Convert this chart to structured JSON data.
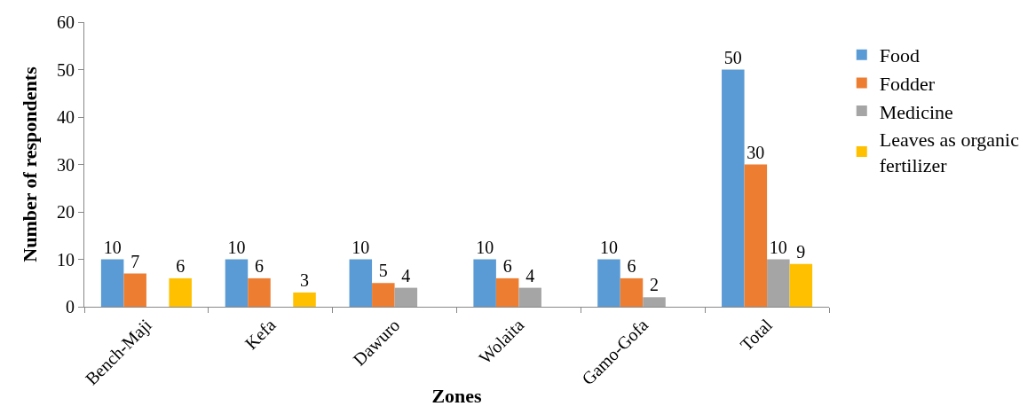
{
  "chart_data": {
    "type": "bar",
    "xlabel": "Zones",
    "ylabel": "Number of respondents",
    "categories": [
      "Bench-Maji",
      "Kefa",
      "Dawuro",
      "Wolaita",
      "Gamo-Gofa",
      "Total"
    ],
    "series": [
      {
        "name": "Food",
        "color": "#5b9bd5",
        "values": [
          10,
          10,
          10,
          10,
          10,
          50
        ]
      },
      {
        "name": "Fodder",
        "color": "#ed7d31",
        "values": [
          7,
          6,
          5,
          6,
          6,
          30
        ]
      },
      {
        "name": "Medicine",
        "color": "#a5a5a5",
        "values": [
          null,
          null,
          4,
          4,
          2,
          10
        ]
      },
      {
        "name": "Leaves as organic fertilizer",
        "color": "#ffc000",
        "values": [
          6,
          3,
          null,
          null,
          null,
          9
        ]
      }
    ],
    "ylim": [
      0,
      60
    ],
    "yticks": [
      0,
      10,
      20,
      30,
      40,
      50,
      60
    ],
    "grid": false,
    "legend": "right",
    "data_labels": true
  }
}
